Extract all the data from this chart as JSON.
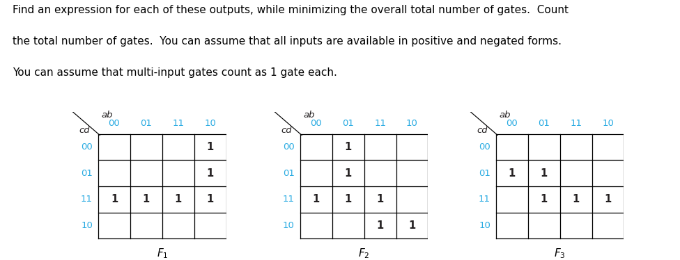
{
  "text_color_blue": "#29ABE2",
  "text_color_dark": "#231F20",
  "header_lines": [
    "Find an expression for each of these outputs, while minimizing the overall total number of gates.  Count",
    "the total number of gates.  You can assume that all inputs are available in positive and negated forms.",
    "You can assume that multi-input gates count as 1 gate each."
  ],
  "ab_label": "ab",
  "cd_label": "cd",
  "col_labels": [
    "00",
    "01",
    "11",
    "10"
  ],
  "row_labels": [
    "00",
    "01",
    "11",
    "10"
  ],
  "kmaps": [
    {
      "title_sub": "1",
      "values": [
        [
          0,
          0,
          0,
          1
        ],
        [
          0,
          0,
          0,
          1
        ],
        [
          1,
          1,
          1,
          1
        ],
        [
          0,
          0,
          0,
          0
        ]
      ]
    },
    {
      "title_sub": "2",
      "values": [
        [
          0,
          1,
          0,
          0
        ],
        [
          0,
          1,
          0,
          0
        ],
        [
          1,
          1,
          1,
          0
        ],
        [
          0,
          0,
          1,
          1
        ]
      ]
    },
    {
      "title_sub": "3",
      "values": [
        [
          0,
          0,
          0,
          0
        ],
        [
          1,
          1,
          0,
          0
        ],
        [
          0,
          1,
          1,
          1
        ],
        [
          0,
          0,
          0,
          0
        ]
      ]
    }
  ],
  "fig_width": 9.76,
  "fig_height": 3.74,
  "header_fontsize": 11.0,
  "label_fontsize": 9.5,
  "cell_fontsize": 10.5
}
